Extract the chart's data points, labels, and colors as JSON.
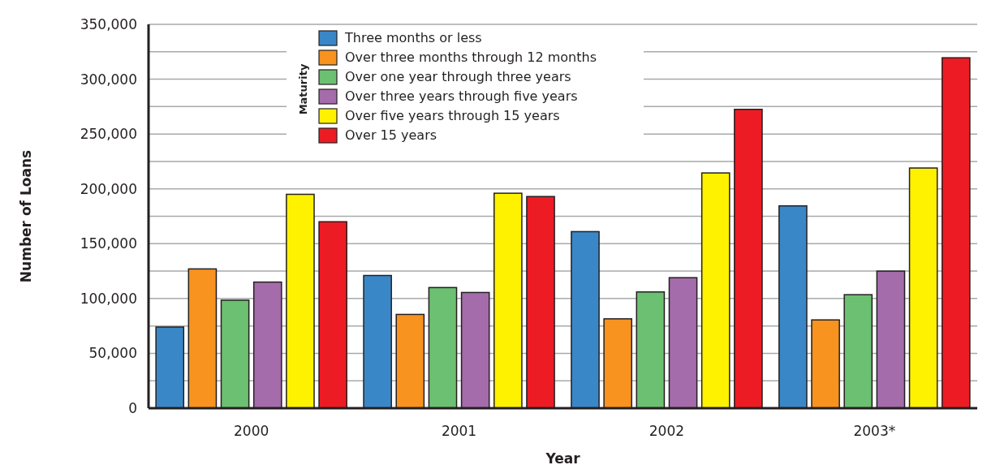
{
  "chart_data": {
    "type": "bar",
    "xlabel": "Year",
    "ylabel": "Number of Loans",
    "legend_title": "Maturity",
    "categories": [
      "2000",
      "2001",
      "2002",
      "2003*"
    ],
    "series": [
      {
        "name": "Three months or less",
        "color": "#3a87c8",
        "values": [
          74000,
          121000,
          161000,
          184500
        ]
      },
      {
        "name": "Over three months through 12 months",
        "color": "#f7931e",
        "values": [
          127000,
          85500,
          81500,
          80500
        ]
      },
      {
        "name": "Over one year through three years",
        "color": "#6cc071",
        "values": [
          98500,
          110000,
          106000,
          103500
        ]
      },
      {
        "name": "Over three years through five years",
        "color": "#a46cab",
        "values": [
          115000,
          105500,
          119000,
          125000
        ]
      },
      {
        "name": "Over five years through 15 years",
        "color": "#fff200",
        "values": [
          195000,
          196000,
          214500,
          219000
        ]
      },
      {
        "name": "Over 15 years",
        "color": "#ed1c24",
        "values": [
          170000,
          193000,
          272500,
          319500
        ]
      }
    ],
    "ylim": [
      0,
      350000
    ],
    "yticks": [
      0,
      {
        "value": 25000,
        "label": null
      },
      {
        "value": 50000,
        "label": "50,000"
      },
      {
        "value": 75000,
        "label": null
      },
      {
        "value": 100000,
        "label": "100,000"
      },
      {
        "value": 125000,
        "label": null
      },
      {
        "value": 150000,
        "label": "150,000"
      },
      {
        "value": 175000,
        "label": null
      },
      {
        "value": 200000,
        "label": "200,000"
      },
      {
        "value": 225000,
        "label": null
      },
      {
        "value": 250000,
        "label": "250,000"
      },
      {
        "value": 275000,
        "label": null
      },
      {
        "value": 300000,
        "label": "300,000"
      },
      {
        "value": 325000,
        "label": null
      },
      {
        "value": 350000,
        "label": "350,000"
      }
    ],
    "grid": "y",
    "legend": "top"
  }
}
